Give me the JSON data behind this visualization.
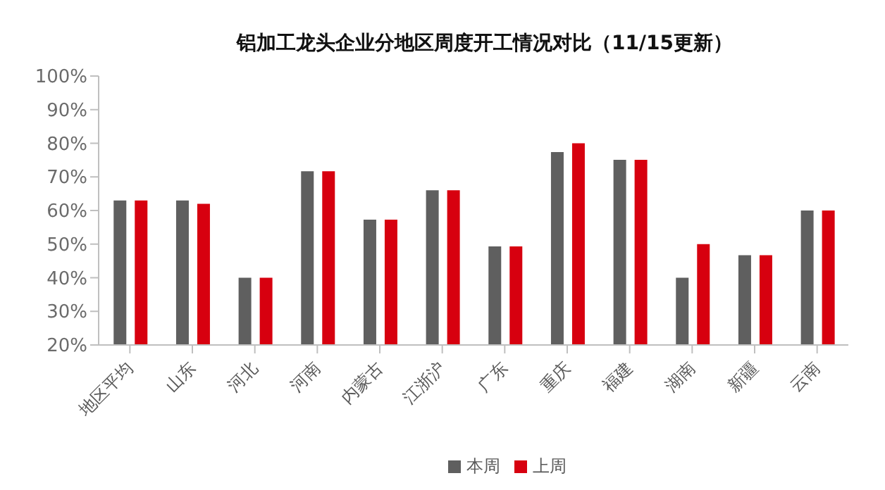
{
  "chart_data": {
    "type": "bar",
    "title": "铝加工龙头企业分地区周度开工情况对比（11/15更新）",
    "categories": [
      "地区平均",
      "山东",
      "河北",
      "河南",
      "内蒙古",
      "江浙沪",
      "广东",
      "重庆",
      "福建",
      "湖南",
      "新疆",
      "云南"
    ],
    "series": [
      {
        "name": "本周",
        "color": "#5f5f5f",
        "values": [
          63,
          63,
          40,
          71.7,
          57.3,
          66,
          49.3,
          77.4,
          75.1,
          40,
          46.7,
          60
        ]
      },
      {
        "name": "上周",
        "color": "#d7000f",
        "values": [
          63,
          62,
          40,
          71.7,
          57.3,
          66,
          49.3,
          80,
          75.1,
          50,
          46.7,
          60
        ]
      }
    ],
    "ylim": [
      20,
      100
    ],
    "yticks": [
      {
        "value": 20,
        "label": "20%"
      },
      {
        "value": 30,
        "label": "30%"
      },
      {
        "value": 40,
        "label": "40%"
      },
      {
        "value": 50,
        "label": "50%"
      },
      {
        "value": 60,
        "label": "60%"
      },
      {
        "value": 70,
        "label": "70%"
      },
      {
        "value": 80,
        "label": "80%"
      },
      {
        "value": 90,
        "label": "90%"
      },
      {
        "value": 100,
        "label": "100%"
      }
    ],
    "legend": "bottom",
    "grid": false
  }
}
